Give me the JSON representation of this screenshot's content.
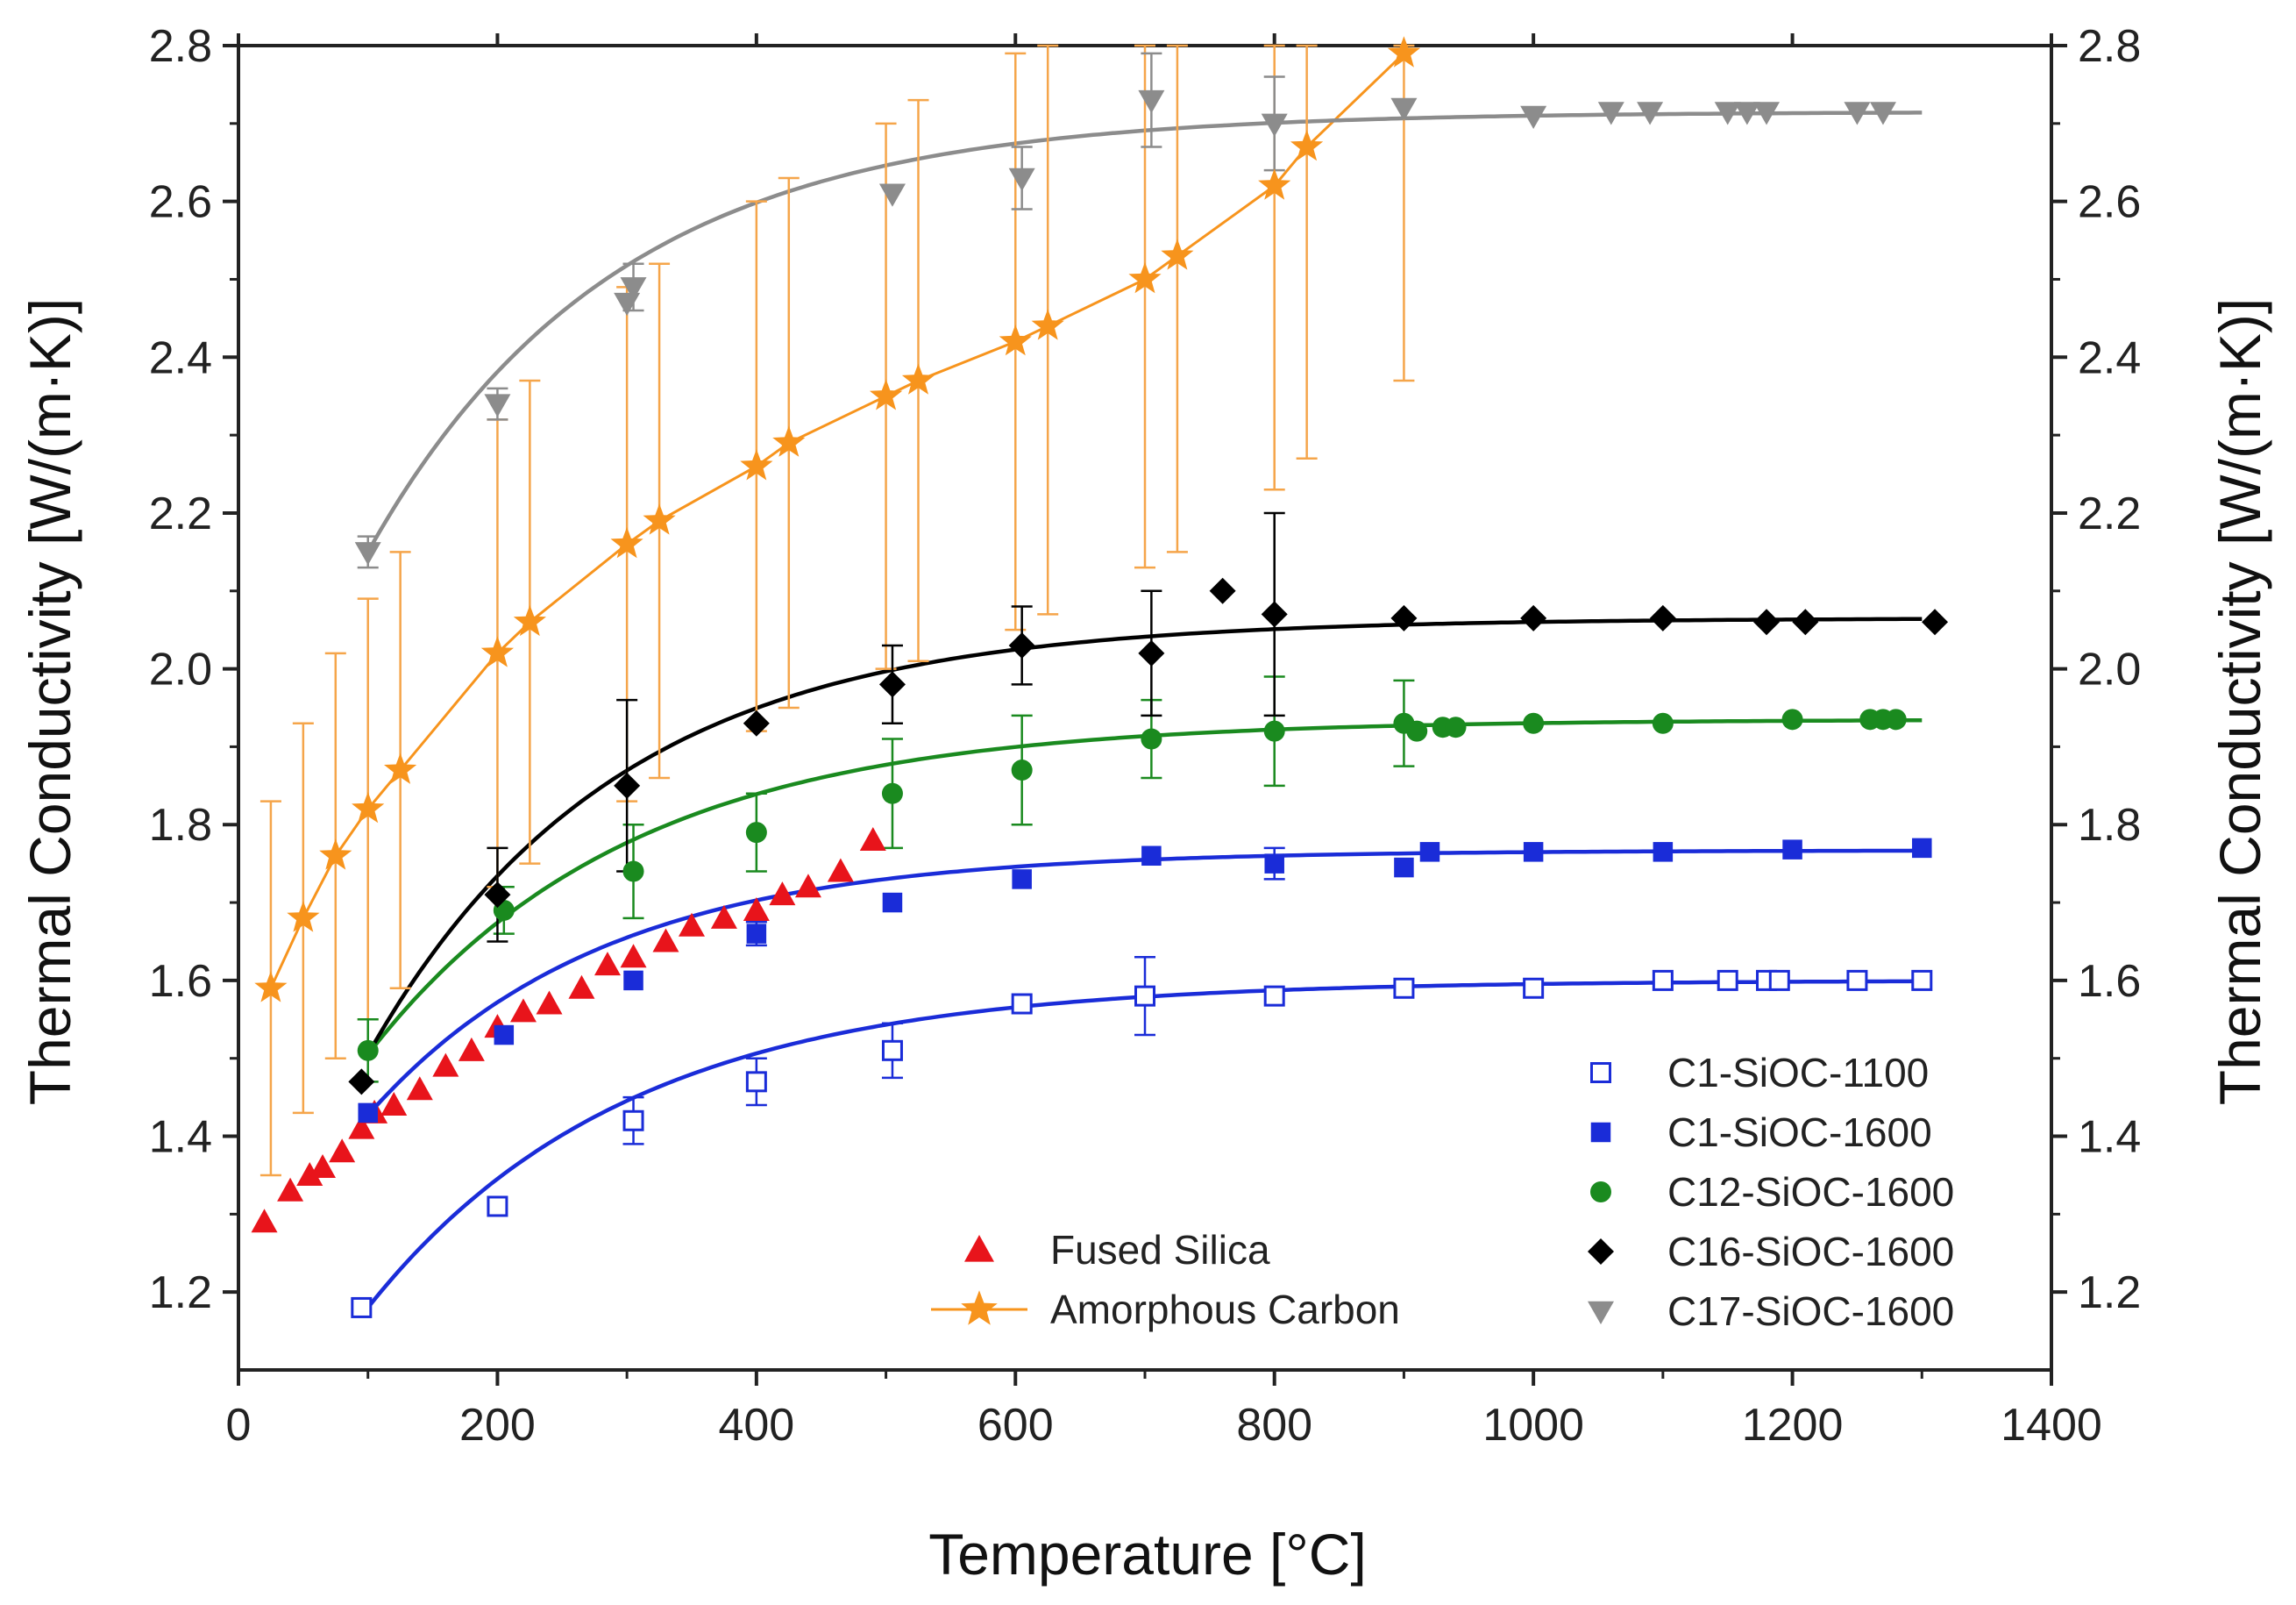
{
  "chart_data": {
    "type": "scatter",
    "title": "",
    "xlabel": "Temperature [°C]",
    "ylabel": "Thermal Conductivity [W/(m·K)]",
    "ylabel_right": "Thermal Conductivity [W/(m·K)]",
    "xlim": [
      0,
      1400
    ],
    "ylim": [
      1.1,
      2.8
    ],
    "x_ticks": [
      "0",
      "200",
      "400",
      "600",
      "800",
      "1000",
      "1200",
      "1400"
    ],
    "y_ticks": [
      "1.2",
      "1.4",
      "1.6",
      "1.8",
      "2.0",
      "2.2",
      "2.4",
      "2.6",
      "2.8"
    ],
    "grid": false,
    "series": [
      {
        "name": "Fused Silica",
        "marker": "triangle-up",
        "color": "#e8141b",
        "legend_group": "left",
        "points": [
          [
            20,
            1.29
          ],
          [
            40,
            1.33
          ],
          [
            55,
            1.35
          ],
          [
            65,
            1.36
          ],
          [
            80,
            1.38
          ],
          [
            95,
            1.41
          ],
          [
            105,
            1.43
          ],
          [
            120,
            1.44
          ],
          [
            140,
            1.46
          ],
          [
            160,
            1.49
          ],
          [
            180,
            1.51
          ],
          [
            200,
            1.54
          ],
          [
            220,
            1.56
          ],
          [
            240,
            1.57
          ],
          [
            265,
            1.59
          ],
          [
            285,
            1.62
          ],
          [
            305,
            1.63
          ],
          [
            330,
            1.65
          ],
          [
            350,
            1.67
          ],
          [
            375,
            1.68
          ],
          [
            400,
            1.69
          ],
          [
            420,
            1.71
          ],
          [
            440,
            1.72
          ],
          [
            465,
            1.74
          ],
          [
            490,
            1.78
          ]
        ]
      },
      {
        "name": "Amorphous Carbon",
        "marker": "star",
        "color": "#f7941d",
        "legend_group": "left",
        "connect": true,
        "points": [
          [
            25,
            1.59
          ],
          [
            50,
            1.68
          ],
          [
            75,
            1.76
          ],
          [
            100,
            1.82
          ],
          [
            125,
            1.87
          ],
          [
            200,
            2.02
          ],
          [
            225,
            2.06
          ],
          [
            300,
            2.16
          ],
          [
            325,
            2.19
          ],
          [
            400,
            2.26
          ],
          [
            425,
            2.29
          ],
          [
            500,
            2.35
          ],
          [
            525,
            2.37
          ],
          [
            600,
            2.42
          ],
          [
            625,
            2.44
          ],
          [
            700,
            2.5
          ],
          [
            725,
            2.53
          ],
          [
            800,
            2.62
          ],
          [
            825,
            2.67
          ],
          [
            900,
            2.79
          ]
        ],
        "errors": [
          0.24,
          0.25,
          0.26,
          0.27,
          0.28,
          0.3,
          0.31,
          0.33,
          0.33,
          0.34,
          0.34,
          0.35,
          0.36,
          0.37,
          0.37,
          0.37,
          0.38,
          0.39,
          0.4,
          0.42
        ]
      },
      {
        "name": "C1-SiOC-1100",
        "marker": "square-open",
        "color": "#1a2cd8",
        "legend_group": "right",
        "fit": {
          "a": 1.6,
          "b": 0.42,
          "x0": 100,
          "tau": 200,
          "xmax": 1300
        },
        "points": [
          [
            95,
            1.18
          ],
          [
            200,
            1.31
          ],
          [
            305,
            1.42
          ],
          [
            400,
            1.47
          ],
          [
            505,
            1.51
          ],
          [
            605,
            1.57
          ],
          [
            700,
            1.58
          ],
          [
            800,
            1.58
          ],
          [
            900,
            1.59
          ],
          [
            1000,
            1.59
          ],
          [
            1100,
            1.6
          ],
          [
            1150,
            1.6
          ],
          [
            1180,
            1.6
          ],
          [
            1190,
            1.6
          ],
          [
            1250,
            1.6
          ],
          [
            1300,
            1.6
          ]
        ],
        "errors": [
          0,
          0,
          0.03,
          0.03,
          0.035,
          0,
          0.05,
          0,
          0,
          0,
          0,
          0,
          0,
          0,
          0,
          0
        ]
      },
      {
        "name": "C1-SiOC-1600",
        "marker": "square",
        "color": "#1a2cd8",
        "legend_group": "right",
        "fit": {
          "a": 1.767,
          "b": 0.34,
          "x0": 100,
          "tau": 180,
          "xmax": 1300
        },
        "points": [
          [
            100,
            1.43
          ],
          [
            205,
            1.53
          ],
          [
            305,
            1.6
          ],
          [
            400,
            1.66
          ],
          [
            505,
            1.7
          ],
          [
            605,
            1.73
          ],
          [
            705,
            1.76
          ],
          [
            800,
            1.75
          ],
          [
            900,
            1.745
          ],
          [
            920,
            1.765
          ],
          [
            1000,
            1.765
          ],
          [
            1100,
            1.765
          ],
          [
            1200,
            1.768
          ],
          [
            1300,
            1.77
          ]
        ],
        "errors": [
          0,
          0,
          0,
          0.015,
          0,
          0,
          0,
          0.02,
          0,
          0,
          0,
          0,
          0,
          0
        ]
      },
      {
        "name": "C12-SiOC-1600",
        "marker": "circle",
        "color": "#1a8a1f",
        "legend_group": "right",
        "fit": {
          "a": 1.935,
          "b": 0.43,
          "x0": 100,
          "tau": 200,
          "xmax": 1300
        },
        "points": [
          [
            100,
            1.51
          ],
          [
            205,
            1.69
          ],
          [
            305,
            1.74
          ],
          [
            400,
            1.79
          ],
          [
            505,
            1.84
          ],
          [
            605,
            1.87
          ],
          [
            705,
            1.91
          ],
          [
            800,
            1.92
          ],
          [
            900,
            1.93
          ],
          [
            910,
            1.92
          ],
          [
            930,
            1.925
          ],
          [
            940,
            1.925
          ],
          [
            1000,
            1.93
          ],
          [
            1100,
            1.93
          ],
          [
            1200,
            1.935
          ],
          [
            1260,
            1.935
          ],
          [
            1270,
            1.935
          ],
          [
            1280,
            1.935
          ]
        ],
        "errors": [
          0.04,
          0.03,
          0.06,
          0.05,
          0.07,
          0.07,
          0.05,
          0.07,
          0.055,
          0,
          0,
          0,
          0,
          0,
          0,
          0,
          0,
          0
        ]
      },
      {
        "name": "C16-SiOC-1600",
        "marker": "diamond",
        "color": "#000000",
        "legend_group": "right",
        "fit": {
          "a": 2.065,
          "b": 0.56,
          "x0": 100,
          "tau": 190,
          "xmax": 1300
        },
        "points": [
          [
            95,
            1.47
          ],
          [
            200,
            1.71
          ],
          [
            300,
            1.85
          ],
          [
            400,
            1.93
          ],
          [
            505,
            1.98
          ],
          [
            605,
            2.03
          ],
          [
            705,
            2.02
          ],
          [
            760,
            2.1
          ],
          [
            800,
            2.07
          ],
          [
            900,
            2.065
          ],
          [
            1000,
            2.065
          ],
          [
            1100,
            2.065
          ],
          [
            1180,
            2.06
          ],
          [
            1210,
            2.06
          ],
          [
            1310,
            2.06
          ]
        ],
        "errors": [
          0,
          0.06,
          0.11,
          0,
          0.05,
          0.05,
          0.08,
          0,
          0.13,
          0,
          0,
          0,
          0,
          0,
          0
        ]
      },
      {
        "name": "C17-SiOC-1600",
        "marker": "triangle-down",
        "color": "#8c8c8c",
        "legend_group": "right",
        "fit": {
          "a": 2.715,
          "b": 0.565,
          "x0": 100,
          "tau": 190,
          "xmax": 1300
        },
        "points": [
          [
            100,
            2.15
          ],
          [
            200,
            2.34
          ],
          [
            300,
            2.47
          ],
          [
            305,
            2.49
          ],
          [
            505,
            2.61
          ],
          [
            605,
            2.63
          ],
          [
            705,
            2.73
          ],
          [
            800,
            2.7
          ],
          [
            900,
            2.72
          ],
          [
            1000,
            2.71
          ],
          [
            1060,
            2.715
          ],
          [
            1090,
            2.715
          ],
          [
            1150,
            2.715
          ],
          [
            1165,
            2.715
          ],
          [
            1180,
            2.715
          ],
          [
            1250,
            2.715
          ],
          [
            1270,
            2.715
          ]
        ],
        "errors": [
          0.02,
          0.02,
          0,
          0.03,
          0,
          0.04,
          0.06,
          0.06,
          0,
          0,
          0,
          0,
          0,
          0,
          0,
          0,
          0
        ]
      }
    ]
  }
}
